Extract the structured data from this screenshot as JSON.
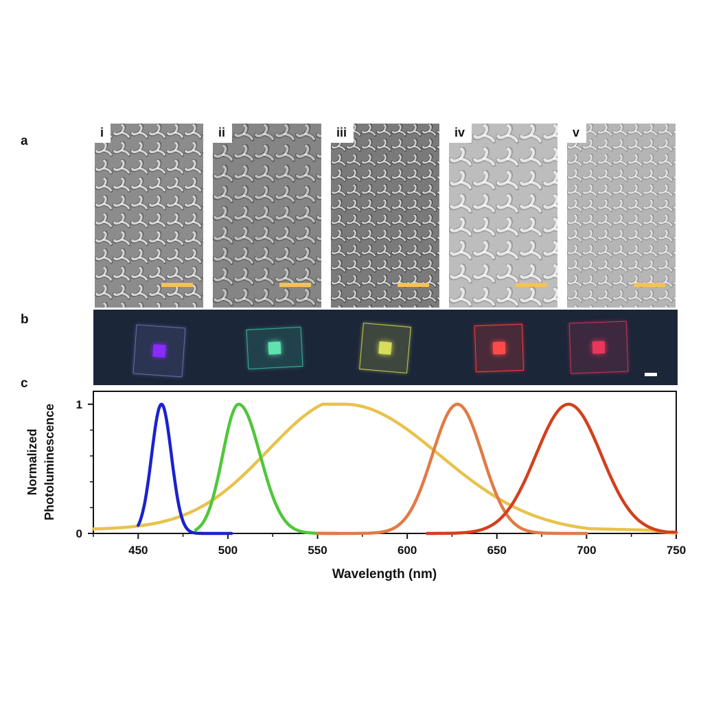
{
  "panel_labels": {
    "a": "a",
    "b": "b",
    "c": "c"
  },
  "sem_panels": [
    {
      "label": "i"
    },
    {
      "label": "ii"
    },
    {
      "label": "iii"
    },
    {
      "label": "iv"
    },
    {
      "label": "v"
    }
  ],
  "colors": {
    "scale_bar": "#f3c25a",
    "photo_background": "#1c2639",
    "blue": "#1a22cc",
    "green": "#4fc73a",
    "yellow": "#e8c24c",
    "orange": "#e27a45",
    "red": "#d2401e"
  },
  "photo_samples": [
    {
      "color_name": "blue",
      "frame": "#6b6fb3",
      "center": "#8a2bff"
    },
    {
      "color_name": "green",
      "frame": "#38b59a",
      "center": "#5fe3b0"
    },
    {
      "color_name": "yellow",
      "frame": "#c7cf4e",
      "center": "#d8dc5a"
    },
    {
      "color_name": "red",
      "frame": "#ff3b3b",
      "center": "#ff4a4a"
    },
    {
      "color_name": "dark-red",
      "frame": "#c5365a",
      "center": "#e8375a"
    }
  ],
  "chart_data": {
    "type": "line",
    "title": "",
    "xlabel": "Wavelength (nm)",
    "ylabel": [
      "Normalized",
      "Photoluminescence"
    ],
    "xlim": [
      425,
      750
    ],
    "ylim": [
      0,
      1.1
    ],
    "x_ticks": [
      450,
      500,
      550,
      600,
      650,
      700,
      750
    ],
    "y_ticks": [
      0,
      1
    ],
    "grid": false,
    "series": [
      {
        "name": "blue",
        "color": "#1a22cc",
        "peak": 463,
        "fwhm": 13,
        "range": [
          450,
          502
        ],
        "asym": 1.0
      },
      {
        "name": "green",
        "color": "#4fc73a",
        "peak": 506,
        "fwhm": 21,
        "range": [
          482,
          561
        ],
        "asym": 1.35
      },
      {
        "name": "yellow",
        "color": "#e8c24c",
        "peak": 565,
        "fwhm": 100,
        "range": [
          425,
          750
        ],
        "asym": 1.25
      },
      {
        "name": "orange",
        "color": "#e27a45",
        "peak": 628,
        "fwhm": 33,
        "range": [
          550,
          700
        ],
        "asym": 1.0
      },
      {
        "name": "red",
        "color": "#d2401e",
        "peak": 690,
        "fwhm": 43,
        "range": [
          611,
          750
        ],
        "asym": 1.0
      }
    ]
  }
}
